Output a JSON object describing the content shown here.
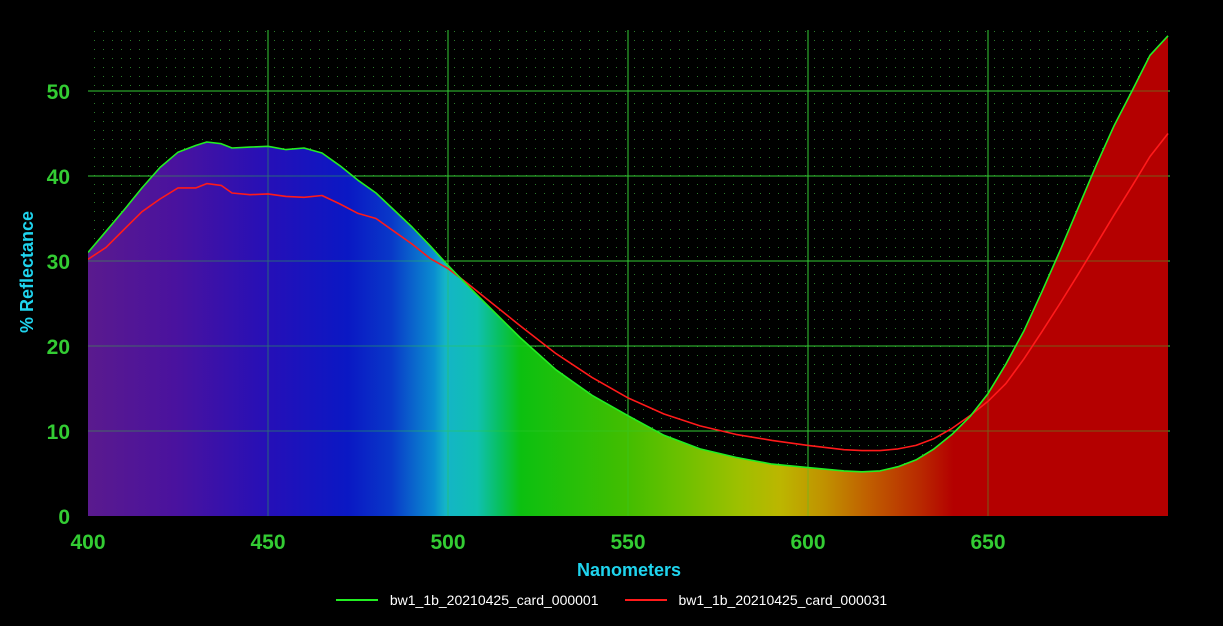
{
  "chart_data": {
    "type": "area",
    "xlabel": "Nanometers",
    "ylabel": "% Reflectance",
    "xlim": [
      400,
      700
    ],
    "ylim": [
      0,
      55
    ],
    "x_ticks": [
      400,
      450,
      500,
      550,
      600,
      650
    ],
    "y_ticks": [
      0,
      10,
      20,
      30,
      40,
      50
    ],
    "grid": true,
    "legend_position": "bottom",
    "background": "#000000",
    "grid_color": "#33cc33",
    "series": [
      {
        "name": "bw1_1b_20210425_card_000001",
        "color": "#22ee22",
        "fill": "visible-spectrum",
        "x": [
          400,
          405,
          410,
          415,
          420,
          425,
          430,
          433,
          437,
          440,
          445,
          450,
          455,
          460,
          465,
          470,
          475,
          480,
          485,
          490,
          495,
          500,
          505,
          510,
          520,
          530,
          540,
          550,
          560,
          570,
          580,
          590,
          600,
          610,
          615,
          620,
          625,
          630,
          635,
          640,
          645,
          650,
          655,
          660,
          665,
          670,
          675,
          680,
          685,
          690,
          695,
          700
        ],
        "y": [
          31,
          33.5,
          36,
          38.6,
          41,
          42.8,
          43.6,
          44,
          43.8,
          43.3,
          43.4,
          43.5,
          43.1,
          43.3,
          42.7,
          41.2,
          39.5,
          38,
          36,
          34,
          31.8,
          29.5,
          27.3,
          25.2,
          21,
          17.2,
          14.2,
          11.8,
          9.5,
          7.9,
          6.9,
          6.1,
          5.7,
          5.3,
          5.2,
          5.3,
          5.8,
          6.6,
          7.9,
          9.6,
          11.7,
          14.4,
          17.9,
          21.8,
          26.4,
          31.2,
          36.2,
          41.2,
          45.9,
          50,
          54.2,
          56.5
        ]
      },
      {
        "name": "bw1_1b_20210425_card_000031",
        "color": "#ff1a1a",
        "x": [
          400,
          405,
          410,
          415,
          420,
          425,
          430,
          433,
          437,
          440,
          445,
          450,
          455,
          460,
          465,
          470,
          475,
          480,
          485,
          490,
          495,
          500,
          505,
          510,
          520,
          530,
          540,
          550,
          560,
          570,
          580,
          590,
          600,
          610,
          615,
          620,
          625,
          630,
          635,
          640,
          645,
          650,
          655,
          660,
          665,
          670,
          675,
          680,
          685,
          690,
          695,
          700
        ],
        "y": [
          30.2,
          31.6,
          33.7,
          35.8,
          37.3,
          38.6,
          38.6,
          39.1,
          38.9,
          38,
          37.8,
          37.9,
          37.6,
          37.5,
          37.7,
          36.7,
          35.6,
          35,
          33.5,
          32,
          30.3,
          29.1,
          27.5,
          25.8,
          22.4,
          19.1,
          16.3,
          13.9,
          12,
          10.6,
          9.6,
          8.9,
          8.3,
          7.8,
          7.7,
          7.7,
          7.9,
          8.3,
          9.1,
          10.3,
          11.8,
          13.5,
          15.6,
          18.5,
          21.7,
          25,
          28.4,
          31.9,
          35.4,
          38.8,
          42.3,
          45
        ]
      }
    ]
  }
}
